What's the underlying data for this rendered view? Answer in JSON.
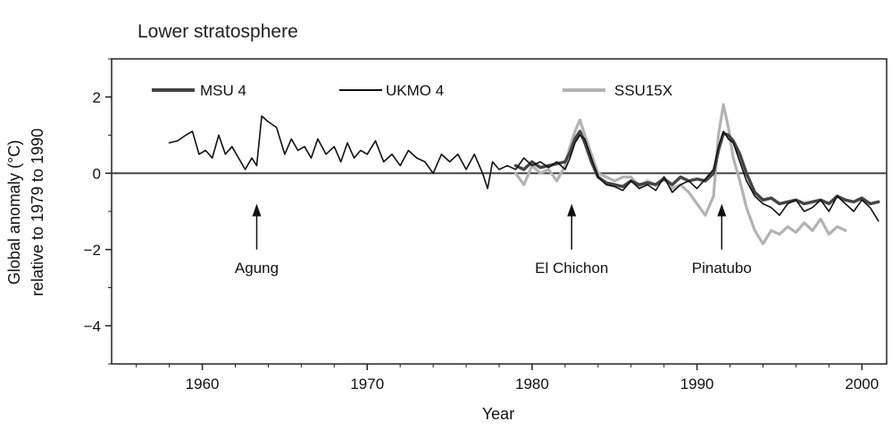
{
  "chart_data": {
    "type": "line",
    "title": "Lower stratosphere",
    "xlabel": "Year",
    "ylabel_lines": [
      "Global anomaly (°C)",
      "relative to 1979 to 1990"
    ],
    "xlim": [
      1954.5,
      2001.5
    ],
    "ylim": [
      -5,
      3
    ],
    "x_ticks": [
      1960,
      1970,
      1980,
      1990,
      2000
    ],
    "y_ticks": [
      2,
      0,
      -2,
      -4
    ],
    "y_tick_labels": [
      "2",
      "0",
      "−2",
      "−4"
    ],
    "reference_line_y": 0,
    "grid": false,
    "legend_position": "top",
    "series": [
      {
        "name": "MSU 4",
        "color": "#444444",
        "x": [
          1979.0,
          1979.5,
          1980.0,
          1980.5,
          1981.0,
          1981.5,
          1982.0,
          1982.3,
          1982.6,
          1982.9,
          1983.2,
          1983.6,
          1984.0,
          1984.5,
          1985.0,
          1985.5,
          1986.0,
          1986.5,
          1987.0,
          1987.5,
          1988.0,
          1988.5,
          1989.0,
          1989.5,
          1990.0,
          1990.5,
          1991.0,
          1991.3,
          1991.6,
          1991.9,
          1992.2,
          1992.6,
          1993.0,
          1993.5,
          1994.0,
          1994.5,
          1995.0,
          1995.5,
          1996.0,
          1996.5,
          1997.0,
          1997.5,
          1998.0,
          1998.5,
          1999.0,
          1999.5,
          2000.0,
          2000.5,
          2001.0
        ],
        "y": [
          0.2,
          0.1,
          0.3,
          0.15,
          0.2,
          0.25,
          0.3,
          0.55,
          0.9,
          1.1,
          0.8,
          0.3,
          -0.1,
          -0.25,
          -0.3,
          -0.35,
          -0.2,
          -0.3,
          -0.25,
          -0.3,
          -0.15,
          -0.3,
          -0.1,
          -0.2,
          -0.15,
          -0.2,
          0.0,
          0.6,
          1.05,
          1.0,
          0.85,
          0.5,
          0.0,
          -0.5,
          -0.7,
          -0.65,
          -0.8,
          -0.75,
          -0.7,
          -0.8,
          -0.75,
          -0.7,
          -0.8,
          -0.6,
          -0.7,
          -0.75,
          -0.65,
          -0.8,
          -0.75
        ]
      },
      {
        "name": "UKMO 4",
        "color": "#111111",
        "x": [
          1958.0,
          1958.5,
          1959.0,
          1959.4,
          1959.8,
          1960.2,
          1960.6,
          1961.0,
          1961.4,
          1961.8,
          1962.2,
          1962.6,
          1963.0,
          1963.3,
          1963.6,
          1964.0,
          1964.5,
          1965.0,
          1965.4,
          1965.8,
          1966.2,
          1966.6,
          1967.0,
          1967.5,
          1968.0,
          1968.4,
          1968.8,
          1969.2,
          1969.6,
          1970.0,
          1970.5,
          1971.0,
          1971.5,
          1972.0,
          1972.5,
          1973.0,
          1973.5,
          1974.0,
          1974.5,
          1975.0,
          1975.5,
          1976.0,
          1976.5,
          1977.0,
          1977.3,
          1977.6,
          1978.0,
          1978.5,
          1979.0,
          1979.5,
          1980.0,
          1980.5,
          1981.0,
          1981.5,
          1982.0,
          1982.3,
          1982.6,
          1982.9,
          1983.2,
          1983.6,
          1984.0,
          1984.5,
          1985.0,
          1985.5,
          1986.0,
          1986.5,
          1987.0,
          1987.5,
          1988.0,
          1988.5,
          1989.0,
          1989.5,
          1990.0,
          1990.5,
          1991.0,
          1991.3,
          1991.6,
          1991.9,
          1992.2,
          1992.6,
          1993.0,
          1993.5,
          1994.0,
          1994.5,
          1995.0,
          1995.5,
          1996.0,
          1996.5,
          1997.0,
          1997.5,
          1998.0,
          1998.5,
          1999.0,
          1999.5,
          2000.0,
          2000.5,
          2001.0
        ],
        "y": [
          0.8,
          0.85,
          1.0,
          1.1,
          0.5,
          0.6,
          0.4,
          1.0,
          0.5,
          0.7,
          0.4,
          0.1,
          0.4,
          0.2,
          1.5,
          1.35,
          1.2,
          0.5,
          0.9,
          0.6,
          0.7,
          0.4,
          0.9,
          0.5,
          0.7,
          0.3,
          0.8,
          0.4,
          0.6,
          0.5,
          0.85,
          0.3,
          0.5,
          0.2,
          0.6,
          0.4,
          0.3,
          0.0,
          0.5,
          0.3,
          0.5,
          0.1,
          0.5,
          0.0,
          -0.4,
          0.3,
          0.1,
          0.2,
          0.1,
          0.4,
          0.2,
          0.3,
          0.15,
          0.3,
          0.1,
          0.4,
          0.8,
          1.0,
          0.9,
          0.4,
          -0.1,
          -0.3,
          -0.35,
          -0.45,
          -0.2,
          -0.4,
          -0.3,
          -0.45,
          -0.1,
          -0.5,
          -0.3,
          -0.2,
          -0.4,
          -0.15,
          0.1,
          0.7,
          1.1,
          0.9,
          0.8,
          0.3,
          -0.2,
          -0.6,
          -0.8,
          -0.9,
          -1.1,
          -0.8,
          -0.7,
          -1.0,
          -0.9,
          -0.7,
          -1.0,
          -0.6,
          -0.8,
          -1.0,
          -0.7,
          -0.9,
          -1.25
        ]
      },
      {
        "name": "SSU15X",
        "color": "#b3b3b3",
        "x": [
          1979.0,
          1979.5,
          1980.0,
          1980.5,
          1981.0,
          1981.5,
          1982.0,
          1982.3,
          1982.6,
          1982.9,
          1983.2,
          1983.6,
          1984.0,
          1984.5,
          1985.0,
          1985.5,
          1986.0,
          1986.5,
          1987.0,
          1987.5,
          1988.0,
          1988.5,
          1989.0,
          1989.5,
          1990.0,
          1990.5,
          1991.0,
          1991.3,
          1991.6,
          1991.9,
          1992.2,
          1992.6,
          1993.0,
          1993.5,
          1994.0,
          1994.5,
          1995.0,
          1995.5,
          1996.0,
          1996.5,
          1997.0,
          1997.5,
          1998.0,
          1998.5,
          1999.0
        ],
        "y": [
          0.0,
          -0.3,
          0.2,
          0.0,
          0.1,
          -0.2,
          0.2,
          0.7,
          1.1,
          1.4,
          1.0,
          0.5,
          0.0,
          -0.1,
          -0.2,
          -0.1,
          -0.1,
          -0.35,
          -0.2,
          -0.3,
          -0.1,
          -0.4,
          -0.3,
          -0.5,
          -0.8,
          -1.1,
          -0.6,
          1.0,
          1.8,
          1.2,
          0.4,
          -0.2,
          -0.9,
          -1.5,
          -1.85,
          -1.5,
          -1.6,
          -1.4,
          -1.55,
          -1.3,
          -1.5,
          -1.2,
          -1.6,
          -1.4,
          -1.5
        ]
      }
    ],
    "annotations": [
      {
        "label": "Agung",
        "x": 1963.3,
        "arrow_tip_y": -0.8,
        "arrow_tail_y": -2.0
      },
      {
        "label": "El Chichon",
        "x": 1982.4,
        "arrow_tip_y": -0.8,
        "arrow_tail_y": -2.0
      },
      {
        "label": "Pinatubo",
        "x": 1991.5,
        "arrow_tip_y": -0.8,
        "arrow_tail_y": -2.0
      }
    ]
  }
}
